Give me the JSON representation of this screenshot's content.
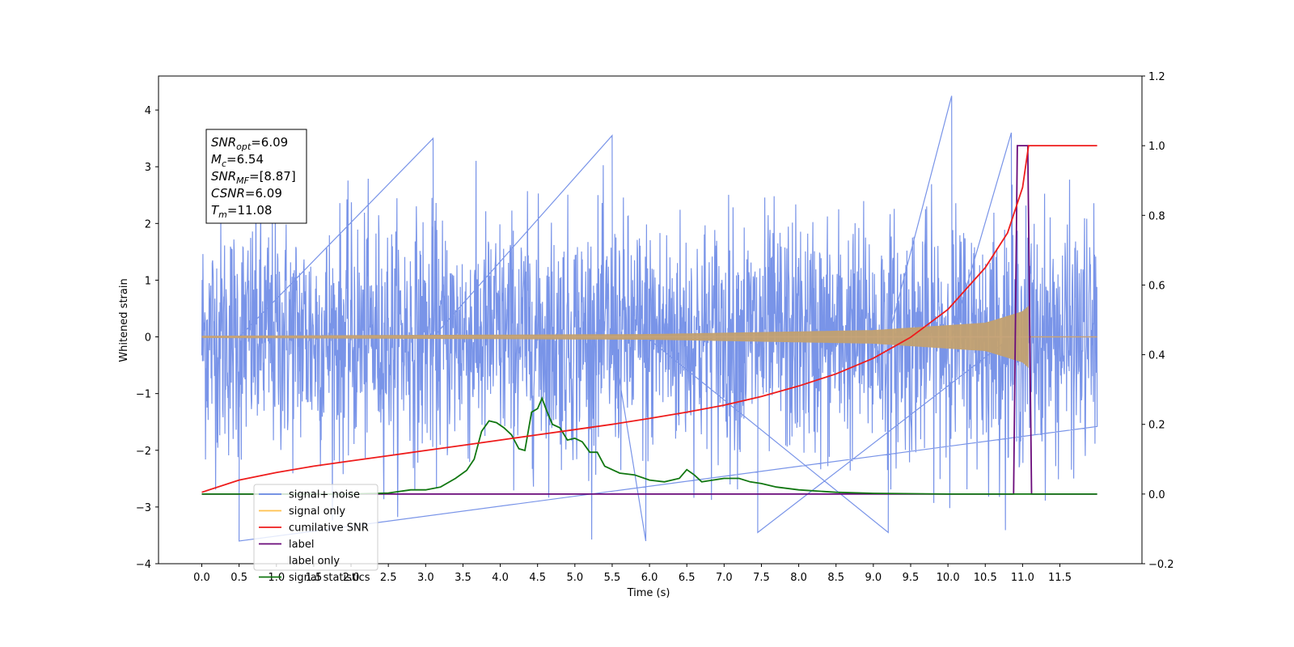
{
  "chart_data": {
    "type": "line",
    "xlabel": "Time (s)",
    "ylabel": "Whitened strain",
    "xlim": [
      -0.58,
      12.6
    ],
    "ylim_left": [
      -4.0,
      4.6
    ],
    "ylim_right": [
      -0.2,
      1.2
    ],
    "x_ticks": [
      "0.0",
      "0.5",
      "1.0",
      "1.5",
      "2.0",
      "2.5",
      "3.0",
      "3.5",
      "4.0",
      "4.5",
      "5.0",
      "5.5",
      "6.0",
      "6.5",
      "7.0",
      "7.5",
      "8.0",
      "8.5",
      "9.0",
      "9.5",
      "10.0",
      "10.5",
      "11.0",
      "11.5"
    ],
    "x_tick_values": [
      0.0,
      0.5,
      1.0,
      1.5,
      2.0,
      2.5,
      3.0,
      3.5,
      4.0,
      4.5,
      5.0,
      5.5,
      6.0,
      6.5,
      7.0,
      7.5,
      8.0,
      8.5,
      9.0,
      9.5,
      10.0,
      10.5,
      11.0,
      11.5
    ],
    "y_ticks_left": [
      "−4",
      "−3",
      "−2",
      "−1",
      "0",
      "1",
      "2",
      "3",
      "4"
    ],
    "y_tick_values_left": [
      -4,
      -3,
      -2,
      -1,
      0,
      1,
      2,
      3,
      4
    ],
    "y_ticks_right": [
      "−0.2",
      "0.0",
      "0.2",
      "0.4",
      "0.6",
      "0.8",
      "1.0",
      "1.2"
    ],
    "y_tick_values_right": [
      -0.2,
      0.0,
      0.2,
      0.4,
      0.6,
      0.8,
      1.0,
      1.2
    ],
    "legend_placement": "lower-left",
    "series": [
      {
        "name": "signal+ noise",
        "axis": "left",
        "color": "#6a88e6",
        "description_values": {
          "t_start": 0.0,
          "t_end": 12.0,
          "typical_range": [
            -2.5,
            2.5
          ],
          "spikes": [
            [
              0.5,
              -3.6
            ],
            [
              3.1,
              3.5
            ],
            [
              5.5,
              3.55
            ],
            [
              5.95,
              -3.6
            ],
            [
              9.2,
              -3.45
            ],
            [
              10.05,
              4.25
            ],
            [
              10.85,
              3.6
            ],
            [
              7.45,
              -3.45
            ]
          ]
        }
      },
      {
        "name": "signal only",
        "axis": "left",
        "color": "#ffc04d",
        "description_values": {
          "t_start": 0.0,
          "t_end": 12.0,
          "merger_time": 11.08,
          "envelope": [
            [
              0.0,
              0.02
            ],
            [
              6.0,
              0.05
            ],
            [
              9.0,
              0.12
            ],
            [
              10.5,
              0.25
            ],
            [
              11.0,
              0.45
            ],
            [
              11.08,
              0.55
            ],
            [
              11.15,
              0.02
            ]
          ]
        }
      },
      {
        "name": "cumilative SNR",
        "axis": "right",
        "color": "#ee1c1c",
        "points": [
          [
            0.0,
            0.005
          ],
          [
            0.5,
            0.04
          ],
          [
            1.0,
            0.062
          ],
          [
            1.5,
            0.08
          ],
          [
            2.0,
            0.095
          ],
          [
            2.5,
            0.11
          ],
          [
            3.0,
            0.125
          ],
          [
            3.5,
            0.14
          ],
          [
            4.0,
            0.155
          ],
          [
            4.5,
            0.17
          ],
          [
            5.0,
            0.185
          ],
          [
            5.5,
            0.2
          ],
          [
            6.0,
            0.217
          ],
          [
            6.5,
            0.235
          ],
          [
            7.0,
            0.255
          ],
          [
            7.5,
            0.28
          ],
          [
            8.0,
            0.31
          ],
          [
            8.5,
            0.345
          ],
          [
            9.0,
            0.39
          ],
          [
            9.5,
            0.45
          ],
          [
            10.0,
            0.53
          ],
          [
            10.5,
            0.65
          ],
          [
            10.8,
            0.75
          ],
          [
            11.0,
            0.88
          ],
          [
            11.08,
            1.0
          ],
          [
            11.1,
            1.0
          ],
          [
            12.0,
            1.0
          ]
        ]
      },
      {
        "name": "label",
        "axis": "right",
        "color": "#6a0a7a",
        "points": [
          [
            0.0,
            0.0
          ],
          [
            10.88,
            0.0
          ],
          [
            10.93,
            1.0
          ],
          [
            11.07,
            1.0
          ],
          [
            11.12,
            0.0
          ],
          [
            12.0,
            0.0
          ]
        ]
      },
      {
        "name": "label only",
        "axis": "right",
        "color": "#6a0a7a",
        "points": []
      },
      {
        "name": "signal statistics",
        "axis": "right",
        "color": "#117711",
        "points": [
          [
            0.0,
            0.0
          ],
          [
            1.5,
            0.0
          ],
          [
            2.0,
            0.0
          ],
          [
            2.5,
            0.003
          ],
          [
            2.8,
            0.012
          ],
          [
            3.0,
            0.012
          ],
          [
            3.2,
            0.02
          ],
          [
            3.4,
            0.045
          ],
          [
            3.55,
            0.068
          ],
          [
            3.65,
            0.1
          ],
          [
            3.75,
            0.18
          ],
          [
            3.85,
            0.21
          ],
          [
            3.95,
            0.205
          ],
          [
            4.05,
            0.19
          ],
          [
            4.15,
            0.17
          ],
          [
            4.25,
            0.13
          ],
          [
            4.33,
            0.125
          ],
          [
            4.42,
            0.235
          ],
          [
            4.5,
            0.245
          ],
          [
            4.56,
            0.275
          ],
          [
            4.62,
            0.24
          ],
          [
            4.7,
            0.2
          ],
          [
            4.8,
            0.19
          ],
          [
            4.9,
            0.155
          ],
          [
            5.0,
            0.16
          ],
          [
            5.1,
            0.15
          ],
          [
            5.2,
            0.12
          ],
          [
            5.3,
            0.12
          ],
          [
            5.4,
            0.08
          ],
          [
            5.6,
            0.06
          ],
          [
            5.8,
            0.055
          ],
          [
            6.0,
            0.04
          ],
          [
            6.2,
            0.035
          ],
          [
            6.4,
            0.045
          ],
          [
            6.5,
            0.07
          ],
          [
            6.6,
            0.055
          ],
          [
            6.7,
            0.035
          ],
          [
            6.85,
            0.04
          ],
          [
            7.0,
            0.045
          ],
          [
            7.2,
            0.045
          ],
          [
            7.35,
            0.035
          ],
          [
            7.5,
            0.03
          ],
          [
            7.7,
            0.02
          ],
          [
            8.0,
            0.012
          ],
          [
            8.5,
            0.005
          ],
          [
            9.0,
            0.002
          ],
          [
            10.0,
            0.0
          ],
          [
            12.0,
            0.0
          ]
        ]
      }
    ],
    "annotation": [
      {
        "label": "SNR",
        "sub": "opt",
        "value": "=6.09"
      },
      {
        "label": "M",
        "sub": "c",
        "value": "=6.54"
      },
      {
        "label": "SNR",
        "sub": "MF",
        "value": "=[8.87]"
      },
      {
        "label": "CSNR",
        "sub": "",
        "value": "=6.09"
      },
      {
        "label": "T",
        "sub": "m",
        "value": "=11.08"
      }
    ]
  }
}
